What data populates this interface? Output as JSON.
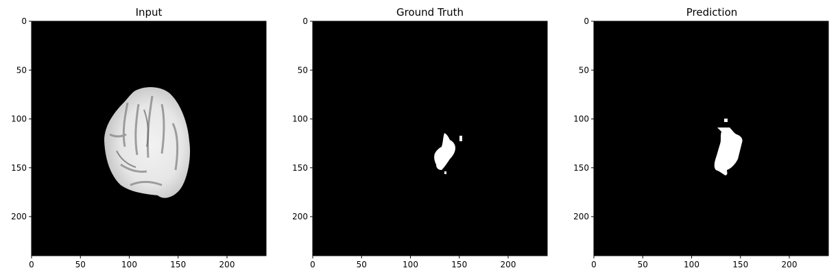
{
  "figure": {
    "panels": [
      {
        "id": "input",
        "title": "Input",
        "content": "brain-slice",
        "x_ticks": [
          "0",
          "50",
          "100",
          "150",
          "200"
        ],
        "y_ticks": [
          "0",
          "50",
          "100",
          "150",
          "200"
        ]
      },
      {
        "id": "ground-truth",
        "title": "Ground Truth",
        "content": "mask-ground-truth",
        "x_ticks": [
          "0",
          "50",
          "100",
          "150",
          "200"
        ],
        "y_ticks": [
          "0",
          "50",
          "100",
          "150",
          "200"
        ]
      },
      {
        "id": "prediction",
        "title": "Prediction",
        "content": "mask-prediction",
        "x_ticks": [
          "0",
          "50",
          "100",
          "150",
          "200"
        ],
        "y_ticks": [
          "0",
          "50",
          "100",
          "150",
          "200"
        ]
      }
    ],
    "colors": {
      "background": "#000000",
      "mask": "#ffffff"
    },
    "image_extent": [
      0,
      240
    ]
  }
}
